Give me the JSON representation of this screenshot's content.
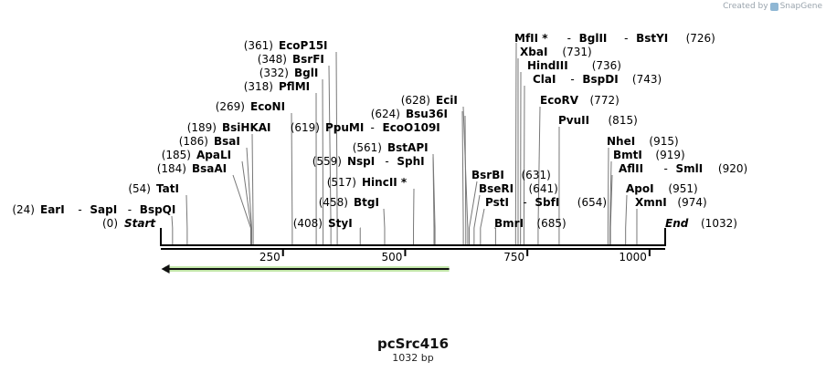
{
  "credit": {
    "prefix": "Created by",
    "brand": "SnapGene"
  },
  "plasmid": {
    "name": "pcSrc416",
    "length_label": "1032 bp",
    "length": 1032
  },
  "terminals": {
    "start": {
      "name": "Start",
      "pos": "(0)"
    },
    "end": {
      "name": "End",
      "pos": "(1032)"
    }
  },
  "ticks": [
    {
      "value": 250,
      "label": "250"
    },
    {
      "value": 500,
      "label": "500"
    },
    {
      "value": 750,
      "label": "750"
    },
    {
      "value": 1000,
      "label": "1000"
    }
  ],
  "features": [
    {
      "name": "orf-arrow",
      "start": 1,
      "end": 590,
      "direction": "reverse",
      "color": "#7ac943"
    }
  ],
  "sites": [
    {
      "site": 24,
      "pos": "(24)",
      "names": [
        "EarI",
        "SapI",
        "BspQI"
      ]
    },
    {
      "site": 54,
      "pos": "(54)",
      "names": [
        "TatI"
      ]
    },
    {
      "site": 184,
      "pos": "(184)",
      "names": [
        "BsaAI"
      ]
    },
    {
      "site": 185,
      "pos": "(185)",
      "names": [
        "ApaLI"
      ]
    },
    {
      "site": 186,
      "pos": "(186)",
      "names": [
        "BsaI"
      ]
    },
    {
      "site": 189,
      "pos": "(189)",
      "names": [
        "BsiHKAI"
      ]
    },
    {
      "site": 269,
      "pos": "(269)",
      "names": [
        "EcoNI"
      ]
    },
    {
      "site": 318,
      "pos": "(318)",
      "names": [
        "PflMI"
      ]
    },
    {
      "site": 332,
      "pos": "(332)",
      "names": [
        "BglI"
      ]
    },
    {
      "site": 348,
      "pos": "(348)",
      "names": [
        "BsrFI"
      ]
    },
    {
      "site": 361,
      "pos": "(361)",
      "names": [
        "EcoP15I"
      ]
    },
    {
      "site": 408,
      "pos": "(408)",
      "names": [
        "StyI"
      ]
    },
    {
      "site": 458,
      "pos": "(458)",
      "names": [
        "BtgI"
      ]
    },
    {
      "site": 517,
      "pos": "(517)",
      "names": [
        "HincII *"
      ]
    },
    {
      "site": 559,
      "pos": "(559)",
      "names": [
        "NspI",
        "SphI"
      ]
    },
    {
      "site": 561,
      "pos": "(561)",
      "names": [
        "BstAPI"
      ]
    },
    {
      "site": 619,
      "pos": "(619)",
      "names": [
        "PpuMI",
        "EcoO109I"
      ]
    },
    {
      "site": 624,
      "pos": "(624)",
      "names": [
        "Bsu36I"
      ]
    },
    {
      "site": 628,
      "pos": "(628)",
      "names": [
        "EciI"
      ]
    },
    {
      "site": 631,
      "pos": "(631)",
      "names": [
        "BsrBI"
      ]
    },
    {
      "site": 641,
      "pos": "(641)",
      "names": [
        "BseRI"
      ]
    },
    {
      "site": 654,
      "pos": "(654)",
      "names": [
        "PstI",
        "SbfI"
      ]
    },
    {
      "site": 685,
      "pos": "(685)",
      "names": [
        "BmrI"
      ]
    },
    {
      "site": 726,
      "pos": "(726)",
      "names": [
        "MfII *",
        "BglII",
        "BstYI"
      ]
    },
    {
      "site": 731,
      "pos": "(731)",
      "names": [
        "XbaI"
      ]
    },
    {
      "site": 736,
      "pos": "(736)",
      "names": [
        "HindIII"
      ]
    },
    {
      "site": 743,
      "pos": "(743)",
      "names": [
        "ClaI",
        "BspDI"
      ]
    },
    {
      "site": 772,
      "pos": "(772)",
      "names": [
        "EcoRV"
      ]
    },
    {
      "site": 815,
      "pos": "(815)",
      "names": [
        "PvuII"
      ]
    },
    {
      "site": 915,
      "pos": "(915)",
      "names": [
        "NheI"
      ]
    },
    {
      "site": 919,
      "pos": "(919)",
      "names": [
        "BmtI"
      ]
    },
    {
      "site": 920,
      "pos": "(920)",
      "names": [
        "AflII",
        "SmlI"
      ]
    },
    {
      "site": 951,
      "pos": "(951)",
      "names": [
        "ApoI"
      ]
    },
    {
      "site": 974,
      "pos": "(974)",
      "names": [
        "XmnI"
      ]
    }
  ]
}
